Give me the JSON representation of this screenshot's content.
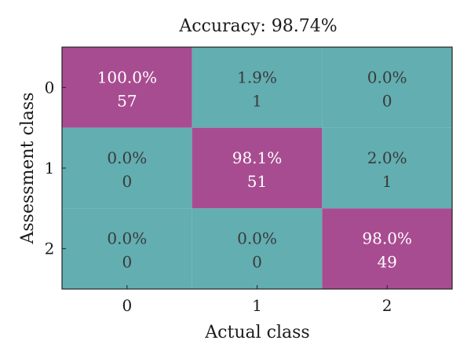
{
  "chart_data": {
    "type": "heatmap",
    "title": "Accuracy: 98.74%",
    "xlabel": "Actual class",
    "ylabel": "Assessment class",
    "x_categories": [
      "0",
      "1",
      "2"
    ],
    "y_categories": [
      "0",
      "1",
      "2"
    ],
    "cells": [
      [
        {
          "pct": "100.0%",
          "count": "57"
        },
        {
          "pct": "1.9%",
          "count": "1"
        },
        {
          "pct": "0.0%",
          "count": "0"
        }
      ],
      [
        {
          "pct": "0.0%",
          "count": "0"
        },
        {
          "pct": "98.1%",
          "count": "51"
        },
        {
          "pct": "2.0%",
          "count": "1"
        }
      ],
      [
        {
          "pct": "0.0%",
          "count": "0"
        },
        {
          "pct": "0.0%",
          "count": "0"
        },
        {
          "pct": "98.0%",
          "count": "49"
        }
      ]
    ],
    "colors": {
      "diagonal": "#a84c91",
      "off_diagonal": "#62aeb1",
      "diagonal_text": "#ffffff",
      "off_diagonal_text": "#3a3a3a"
    }
  }
}
